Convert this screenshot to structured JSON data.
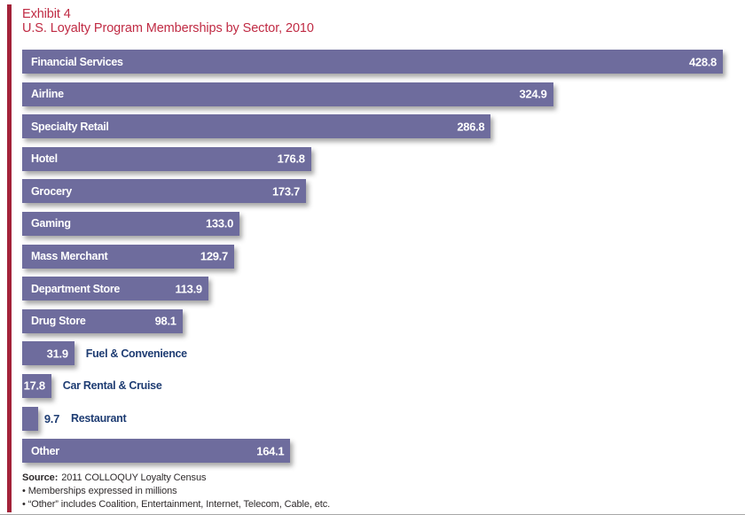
{
  "header": {
    "exhibit_label": "Exhibit 4",
    "title": "U.S. Loyalty Program Memberships by Sector, 2010"
  },
  "chart_data": {
    "type": "bar",
    "orientation": "horizontal",
    "title": "U.S. Loyalty Program Memberships by Sector, 2010",
    "value_unit": "millions of memberships",
    "xlim": [
      0,
      428.8
    ],
    "grid": false,
    "legend": false,
    "bar_color": "#6E6C9D",
    "categories": [
      "Financial Services",
      "Airline",
      "Specialty Retail",
      "Hotel",
      "Grocery",
      "Gaming",
      "Mass Merchant",
      "Department Store",
      "Drug Store",
      "Fuel & Convenience",
      "Car Rental & Cruise",
      "Restaurant",
      "Other"
    ],
    "values": [
      428.8,
      324.9,
      286.8,
      176.8,
      173.7,
      133.0,
      129.7,
      113.9,
      98.1,
      31.9,
      17.8,
      9.7,
      164.1
    ],
    "rows": [
      {
        "label": "Financial Services",
        "value": 428.8,
        "display": "428.8",
        "label_inside": true,
        "value_inside": true
      },
      {
        "label": "Airline",
        "value": 324.9,
        "display": "324.9",
        "label_inside": true,
        "value_inside": true
      },
      {
        "label": "Specialty Retail",
        "value": 286.8,
        "display": "286.8",
        "label_inside": true,
        "value_inside": true
      },
      {
        "label": "Hotel",
        "value": 176.8,
        "display": "176.8",
        "label_inside": true,
        "value_inside": true
      },
      {
        "label": "Grocery",
        "value": 173.7,
        "display": "173.7",
        "label_inside": true,
        "value_inside": true
      },
      {
        "label": "Gaming",
        "value": 133.0,
        "display": "133.0",
        "label_inside": true,
        "value_inside": true
      },
      {
        "label": "Mass Merchant",
        "value": 129.7,
        "display": "129.7",
        "label_inside": true,
        "value_inside": true
      },
      {
        "label": "Department Store",
        "value": 113.9,
        "display": "113.9",
        "label_inside": true,
        "value_inside": true
      },
      {
        "label": "Drug Store",
        "value": 98.1,
        "display": "98.1",
        "label_inside": true,
        "value_inside": true
      },
      {
        "label": "Fuel & Convenience",
        "value": 31.9,
        "display": "31.9",
        "label_inside": false,
        "value_inside": true
      },
      {
        "label": "Car Rental & Cruise",
        "value": 17.8,
        "display": "17.8",
        "label_inside": false,
        "value_inside": true
      },
      {
        "label": "Restaurant",
        "value": 9.7,
        "display": "9.7",
        "label_inside": false,
        "value_inside": false
      },
      {
        "label": "Other",
        "value": 164.1,
        "display": "164.1",
        "label_inside": true,
        "value_inside": true
      }
    ]
  },
  "footer": {
    "source_label": "Source:",
    "source_text": "2011 COLLOQUY Loyalty Census",
    "notes": [
      "• Memberships expressed in millions",
      "• “Other” includes Coalition, Entertainment, Internet, Telecom, Cable, etc."
    ]
  },
  "colors": {
    "bar": "#6E6C9D",
    "accent_bar": "#A32239",
    "title_text": "#C02B44",
    "bar_inner_text": "#FFFFFF",
    "outside_label_text": "#1F3D73",
    "footer_text": "#2E2A2B",
    "bottom_rule": "#A7A7A7"
  }
}
